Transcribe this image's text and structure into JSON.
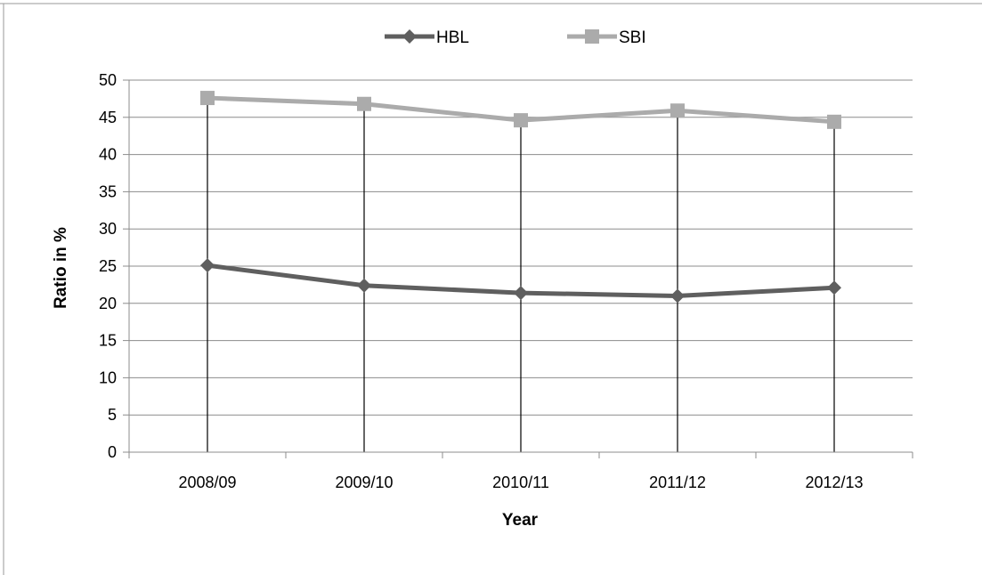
{
  "chart_data": {
    "type": "line",
    "title": "",
    "categories": [
      "2008/09",
      "2009/10",
      "2010/11",
      "2011/12",
      "2012/13"
    ],
    "xlabel": "Year",
    "ylabel": "Ratio in %",
    "ylim": [
      0,
      50
    ],
    "yticks": [
      0,
      5,
      10,
      15,
      20,
      25,
      30,
      35,
      40,
      45,
      50
    ],
    "grid": true,
    "drop_lines": true,
    "legend_position": "top",
    "series": [
      {
        "name": "HBL",
        "color": "#5f5f5f",
        "marker": "diamond",
        "values": [
          25.1,
          22.4,
          21.4,
          21.0,
          22.1
        ]
      },
      {
        "name": "SBI",
        "color": "#ababab",
        "marker": "square",
        "values": [
          47.6,
          46.8,
          44.6,
          45.9,
          44.4
        ]
      }
    ]
  }
}
